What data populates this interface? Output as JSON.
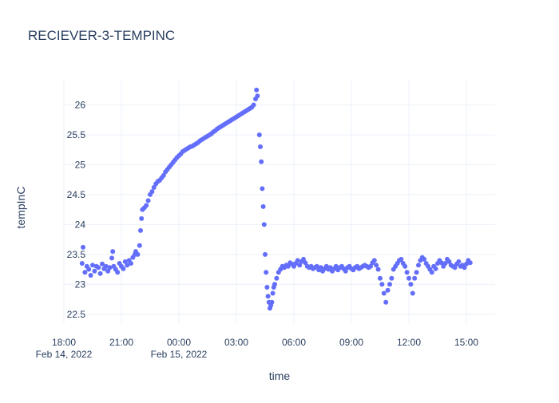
{
  "chart_data": {
    "type": "scatter",
    "title": "RECIEVER-3-TEMPINC",
    "xlabel": "time",
    "ylabel": "tempInC",
    "x_unit": "hours",
    "x_ticks": [
      {
        "value": 18,
        "label": "18:00",
        "sublabel": "Feb 14, 2022"
      },
      {
        "value": 21,
        "label": "21:00",
        "sublabel": ""
      },
      {
        "value": 24,
        "label": "00:00",
        "sublabel": "Feb 15, 2022"
      },
      {
        "value": 27,
        "label": "03:00",
        "sublabel": ""
      },
      {
        "value": 30,
        "label": "06:00",
        "sublabel": ""
      },
      {
        "value": 33,
        "label": "09:00",
        "sublabel": ""
      },
      {
        "value": 36,
        "label": "12:00",
        "sublabel": ""
      },
      {
        "value": 39,
        "label": "15:00",
        "sublabel": ""
      }
    ],
    "y_ticks": [
      22.5,
      23,
      23.5,
      24,
      24.5,
      25,
      25.5,
      26
    ],
    "xlim": [
      18,
      40.5
    ],
    "ylim": [
      22.35,
      26.42
    ],
    "grid": true,
    "legend": "none",
    "marker_color": "#636efa",
    "series": [
      {
        "points": [
          [
            18.95,
            23.35
          ],
          [
            19.0,
            23.62
          ],
          [
            19.1,
            23.2
          ],
          [
            19.2,
            23.3
          ],
          [
            19.3,
            23.25
          ],
          [
            19.4,
            23.15
          ],
          [
            19.5,
            23.32
          ],
          [
            19.6,
            23.22
          ],
          [
            19.7,
            23.3
          ],
          [
            19.8,
            23.28
          ],
          [
            19.9,
            23.18
          ],
          [
            20.0,
            23.34
          ],
          [
            20.1,
            23.26
          ],
          [
            20.2,
            23.3
          ],
          [
            20.3,
            23.22
          ],
          [
            20.4,
            23.28
          ],
          [
            20.5,
            23.44
          ],
          [
            20.55,
            23.55
          ],
          [
            20.6,
            23.3
          ],
          [
            20.7,
            23.25
          ],
          [
            20.8,
            23.2
          ],
          [
            20.9,
            23.35
          ],
          [
            21.0,
            23.3
          ],
          [
            21.1,
            23.26
          ],
          [
            21.2,
            23.38
          ],
          [
            21.3,
            23.32
          ],
          [
            21.4,
            23.4
          ],
          [
            21.5,
            23.35
          ],
          [
            21.6,
            23.45
          ],
          [
            21.7,
            23.5
          ],
          [
            21.75,
            23.55
          ],
          [
            21.85,
            23.5
          ],
          [
            21.95,
            23.65
          ],
          [
            22.0,
            23.9
          ],
          [
            22.05,
            24.1
          ],
          [
            22.1,
            24.25
          ],
          [
            22.2,
            24.28
          ],
          [
            22.3,
            24.32
          ],
          [
            22.4,
            24.4
          ],
          [
            22.5,
            24.5
          ],
          [
            22.6,
            24.55
          ],
          [
            22.7,
            24.62
          ],
          [
            22.8,
            24.68
          ],
          [
            22.9,
            24.72
          ],
          [
            23.0,
            24.74
          ],
          [
            23.1,
            24.78
          ],
          [
            23.2,
            24.82
          ],
          [
            23.3,
            24.88
          ],
          [
            23.4,
            24.92
          ],
          [
            23.5,
            24.96
          ],
          [
            23.6,
            25.0
          ],
          [
            23.7,
            25.04
          ],
          [
            23.8,
            25.08
          ],
          [
            23.9,
            25.12
          ],
          [
            24.0,
            25.15
          ],
          [
            24.1,
            25.18
          ],
          [
            24.2,
            25.22
          ],
          [
            24.3,
            25.24
          ],
          [
            24.4,
            25.26
          ],
          [
            24.5,
            25.28
          ],
          [
            24.6,
            25.3
          ],
          [
            24.7,
            25.31
          ],
          [
            24.8,
            25.33
          ],
          [
            24.9,
            25.35
          ],
          [
            25.0,
            25.37
          ],
          [
            25.1,
            25.4
          ],
          [
            25.2,
            25.42
          ],
          [
            25.3,
            25.44
          ],
          [
            25.4,
            25.46
          ],
          [
            25.5,
            25.48
          ],
          [
            25.6,
            25.5
          ],
          [
            25.7,
            25.52
          ],
          [
            25.8,
            25.55
          ],
          [
            25.9,
            25.57
          ],
          [
            26.0,
            25.6
          ],
          [
            26.1,
            25.62
          ],
          [
            26.2,
            25.64
          ],
          [
            26.3,
            25.66
          ],
          [
            26.4,
            25.68
          ],
          [
            26.5,
            25.7
          ],
          [
            26.6,
            25.72
          ],
          [
            26.7,
            25.74
          ],
          [
            26.8,
            25.76
          ],
          [
            26.9,
            25.78
          ],
          [
            27.0,
            25.8
          ],
          [
            27.1,
            25.82
          ],
          [
            27.2,
            25.84
          ],
          [
            27.3,
            25.86
          ],
          [
            27.4,
            25.88
          ],
          [
            27.5,
            25.9
          ],
          [
            27.6,
            25.92
          ],
          [
            27.7,
            25.94
          ],
          [
            27.8,
            25.96
          ],
          [
            27.9,
            26.0
          ],
          [
            28.0,
            26.1
          ],
          [
            28.05,
            26.25
          ],
          [
            28.1,
            26.15
          ],
          [
            28.2,
            25.5
          ],
          [
            28.25,
            25.3
          ],
          [
            28.3,
            25.05
          ],
          [
            28.35,
            24.6
          ],
          [
            28.4,
            24.3
          ],
          [
            28.45,
            24.0
          ],
          [
            28.5,
            23.5
          ],
          [
            28.55,
            23.2
          ],
          [
            28.6,
            22.95
          ],
          [
            28.65,
            22.8
          ],
          [
            28.7,
            22.7
          ],
          [
            28.75,
            22.6
          ],
          [
            28.8,
            22.65
          ],
          [
            28.85,
            22.7
          ],
          [
            28.9,
            22.85
          ],
          [
            28.95,
            22.95
          ],
          [
            29.0,
            23.0
          ],
          [
            29.1,
            23.1
          ],
          [
            29.2,
            23.2
          ],
          [
            29.3,
            23.25
          ],
          [
            29.4,
            23.3
          ],
          [
            29.5,
            23.28
          ],
          [
            29.6,
            23.32
          ],
          [
            29.7,
            23.3
          ],
          [
            29.8,
            23.36
          ],
          [
            29.9,
            23.34
          ],
          [
            30.0,
            23.3
          ],
          [
            30.1,
            23.35
          ],
          [
            30.2,
            23.4
          ],
          [
            30.3,
            23.32
          ],
          [
            30.4,
            23.38
          ],
          [
            30.5,
            23.42
          ],
          [
            30.6,
            23.36
          ],
          [
            30.7,
            23.3
          ],
          [
            30.8,
            23.28
          ],
          [
            30.9,
            23.3
          ],
          [
            31.0,
            23.26
          ],
          [
            31.1,
            23.28
          ],
          [
            31.2,
            23.3
          ],
          [
            31.3,
            23.24
          ],
          [
            31.4,
            23.28
          ],
          [
            31.5,
            23.22
          ],
          [
            31.6,
            23.26
          ],
          [
            31.7,
            23.3
          ],
          [
            31.8,
            23.25
          ],
          [
            31.9,
            23.28
          ],
          [
            32.0,
            23.22
          ],
          [
            32.1,
            23.26
          ],
          [
            32.2,
            23.3
          ],
          [
            32.3,
            23.24
          ],
          [
            32.4,
            23.28
          ],
          [
            32.5,
            23.3
          ],
          [
            32.6,
            23.26
          ],
          [
            32.7,
            23.22
          ],
          [
            32.8,
            23.28
          ],
          [
            32.9,
            23.3
          ],
          [
            33.0,
            23.26
          ],
          [
            33.1,
            23.24
          ],
          [
            33.2,
            23.28
          ],
          [
            33.3,
            23.3
          ],
          [
            33.4,
            23.26
          ],
          [
            33.5,
            23.28
          ],
          [
            33.6,
            23.3
          ],
          [
            33.7,
            23.32
          ],
          [
            33.8,
            23.3
          ],
          [
            33.9,
            23.28
          ],
          [
            34.0,
            23.3
          ],
          [
            34.1,
            23.36
          ],
          [
            34.2,
            23.4
          ],
          [
            34.3,
            23.32
          ],
          [
            34.4,
            23.25
          ],
          [
            34.5,
            23.1
          ],
          [
            34.6,
            23.0
          ],
          [
            34.7,
            22.85
          ],
          [
            34.8,
            22.7
          ],
          [
            34.9,
            22.9
          ],
          [
            35.0,
            23.0
          ],
          [
            35.1,
            23.1
          ],
          [
            35.2,
            23.25
          ],
          [
            35.3,
            23.3
          ],
          [
            35.4,
            23.35
          ],
          [
            35.5,
            23.4
          ],
          [
            35.6,
            23.42
          ],
          [
            35.7,
            23.35
          ],
          [
            35.8,
            23.3
          ],
          [
            35.9,
            23.2
          ],
          [
            36.0,
            23.1
          ],
          [
            36.1,
            23.0
          ],
          [
            36.2,
            22.85
          ],
          [
            36.3,
            23.1
          ],
          [
            36.4,
            23.2
          ],
          [
            36.5,
            23.32
          ],
          [
            36.6,
            23.4
          ],
          [
            36.7,
            23.45
          ],
          [
            36.8,
            23.42
          ],
          [
            36.9,
            23.35
          ],
          [
            37.0,
            23.3
          ],
          [
            37.1,
            23.25
          ],
          [
            37.2,
            23.2
          ],
          [
            37.3,
            23.3
          ],
          [
            37.4,
            23.26
          ],
          [
            37.5,
            23.35
          ],
          [
            37.6,
            23.4
          ],
          [
            37.7,
            23.36
          ],
          [
            37.8,
            23.3
          ],
          [
            37.9,
            23.35
          ],
          [
            38.0,
            23.42
          ],
          [
            38.1,
            23.38
          ],
          [
            38.2,
            23.32
          ],
          [
            38.3,
            23.3
          ],
          [
            38.4,
            23.28
          ],
          [
            38.5,
            23.34
          ],
          [
            38.6,
            23.38
          ],
          [
            38.7,
            23.3
          ],
          [
            38.8,
            23.32
          ],
          [
            38.9,
            23.28
          ],
          [
            39.0,
            23.34
          ],
          [
            39.1,
            23.4
          ],
          [
            39.2,
            23.36
          ]
        ]
      }
    ]
  }
}
